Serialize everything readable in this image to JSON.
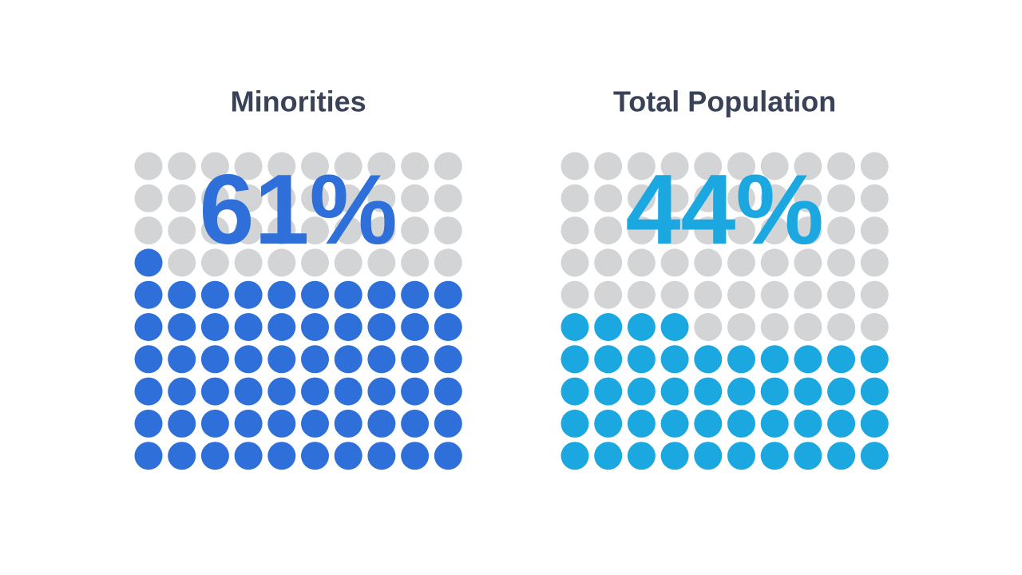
{
  "chart_data": [
    {
      "type": "waffle",
      "title": "Minorities",
      "values": [
        61
      ],
      "value_labels": [
        "61%"
      ],
      "color": "#2e6fd9",
      "empty_color": "#d3d4d6"
    },
    {
      "type": "waffle",
      "title": "Total Population",
      "values": [
        44
      ],
      "value_labels": [
        "44%"
      ],
      "color": "#1ba8e0",
      "empty_color": "#d3d4d6"
    }
  ]
}
